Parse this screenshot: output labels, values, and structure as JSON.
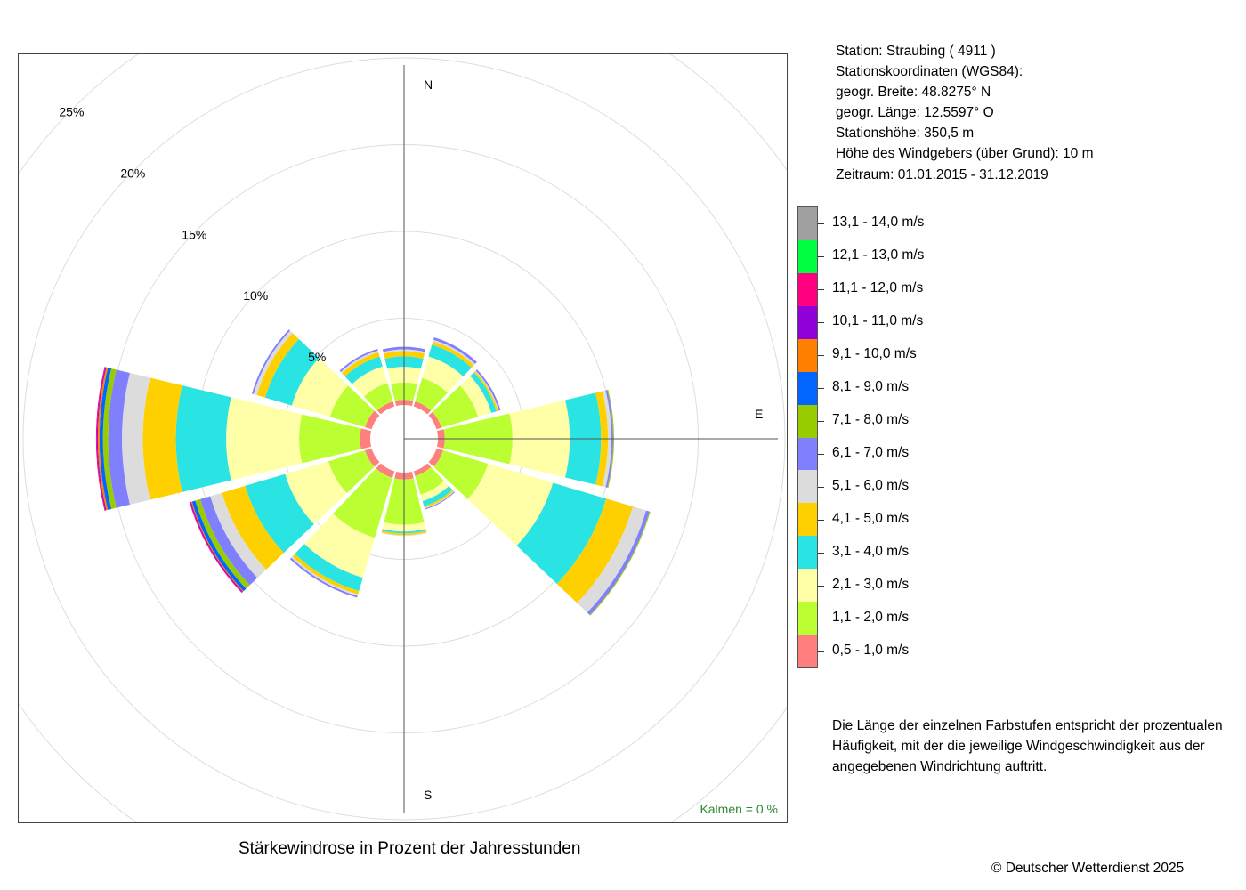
{
  "station": {
    "line_station": "Station:  Straubing  ( 4911 )",
    "line_coords": "Stationskoordinaten (WGS84):",
    "line_lat": "geogr. Breite: 48.8275° N",
    "line_lon": "geogr. Länge: 12.5597° O",
    "line_height": "Stationshöhe: 350,5 m",
    "line_sensor": "Höhe des Windgebers (über Grund): 10 m",
    "line_period": "Zeitraum: 01.01.2015 - 31.12.2019"
  },
  "note": "Die Länge der einzelnen Farbstufen entspricht der prozentualen Häufigkeit, mit der die jeweilige Windgeschwindigkeit aus der angegebenen Windrichtung auftritt.",
  "caption": "Stärkewindrose in Prozent der Jahresstunden",
  "copyright": "© Deutscher Wetterdienst  2025",
  "chart_data": {
    "type": "windrose",
    "title": "Stärkewindrose in Prozent der Jahresstunden",
    "direction_labels": {
      "north": "N",
      "east": "E",
      "south": "S"
    },
    "ring_labels": [
      "5%",
      "10%",
      "15%",
      "20%",
      "25%"
    ],
    "rings": [
      5,
      10,
      15,
      20,
      25
    ],
    "calm_label": "Kalmen  =  0 %",
    "calm": 0,
    "legend": [
      {
        "label": "13,1 - 14,0 m/s",
        "color": "#a0a0a0"
      },
      {
        "label": "12,1 - 13,0 m/s",
        "color": "#00ff40"
      },
      {
        "label": "11,1 - 12,0 m/s",
        "color": "#ff0080"
      },
      {
        "label": "10,1 - 11,0 m/s",
        "color": "#9000d8"
      },
      {
        "label": "9,1 - 10,0 m/s",
        "color": "#ff8000"
      },
      {
        "label": "8,1 - 9,0 m/s",
        "color": "#0066ff"
      },
      {
        "label": "7,1 - 8,0 m/s",
        "color": "#99cc00"
      },
      {
        "label": "6,1 - 7,0 m/s",
        "color": "#8080ff"
      },
      {
        "label": "5,1 - 6,0 m/s",
        "color": "#dcdcdc"
      },
      {
        "label": "4,1 - 5,0 m/s",
        "color": "#ffd000"
      },
      {
        "label": "3,1 - 4,0 m/s",
        "color": "#2ae4e4"
      },
      {
        "label": "2,1 - 3,0 m/s",
        "color": "#ffffa8"
      },
      {
        "label": "1,1 - 2,0 m/s",
        "color": "#bbff33"
      },
      {
        "label": "0,5 - 1,0 m/s",
        "color": "#ff7f7f"
      }
    ],
    "classes": [
      "0,5 - 1,0 m/s",
      "1,1 - 2,0 m/s",
      "2,1 - 3,0 m/s",
      "3,1 - 4,0 m/s",
      "4,1 - 5,0 m/s",
      "5,1 - 6,0 m/s",
      "6,1 - 7,0 m/s",
      "7,1 - 8,0 m/s",
      "8,1 - 9,0 m/s",
      "9,1 - 10,0 m/s",
      "10,1 - 11,0 m/s",
      "11,1 - 12,0 m/s",
      "12,1 - 13,0 m/s",
      "13,1 - 14,0 m/s"
    ],
    "sectors": [
      {
        "direction_deg": 0,
        "values": [
          0.3,
          1.0,
          0.9,
          0.6,
          0.3,
          0.1,
          0.15,
          0,
          0,
          0,
          0,
          0,
          0,
          0
        ]
      },
      {
        "direction_deg": 30,
        "values": [
          0.3,
          1.4,
          1.3,
          0.7,
          0.2,
          0.1,
          0.15,
          0,
          0,
          0,
          0,
          0,
          0,
          0
        ]
      },
      {
        "direction_deg": 60,
        "values": [
          0.3,
          2.2,
          0.8,
          0.3,
          0.1,
          0.05,
          0.1,
          0,
          0,
          0,
          0,
          0,
          0,
          0
        ]
      },
      {
        "direction_deg": 90,
        "values": [
          0.4,
          3.9,
          3.3,
          1.8,
          0.4,
          0.2,
          0.1,
          0.05,
          0,
          0,
          0,
          0,
          0,
          0
        ]
      },
      {
        "direction_deg": 120,
        "values": [
          0.4,
          2.7,
          3.9,
          3.2,
          1.6,
          0.8,
          0.2,
          0.05,
          0,
          0,
          0,
          0,
          0,
          0
        ]
      },
      {
        "direction_deg": 150,
        "values": [
          0.3,
          1.1,
          0.4,
          0.3,
          0.1,
          0.05,
          0.05,
          0,
          0,
          0,
          0,
          0,
          0,
          0
        ]
      },
      {
        "direction_deg": 180,
        "values": [
          0.4,
          2.6,
          0.4,
          0.1,
          0.1,
          0.05,
          0,
          0,
          0,
          0,
          0,
          0,
          0,
          0
        ]
      },
      {
        "direction_deg": 210,
        "values": [
          0.4,
          3.6,
          2.4,
          0.8,
          0.2,
          0.1,
          0.1,
          0,
          0,
          0,
          0,
          0,
          0,
          0
        ]
      },
      {
        "direction_deg": 240,
        "values": [
          0.4,
          2.2,
          2.6,
          2.4,
          1.4,
          0.7,
          0.6,
          0.3,
          0.2,
          0.05,
          0.05,
          0.05,
          0,
          0
        ]
      },
      {
        "direction_deg": 270,
        "values": [
          0.6,
          3.5,
          4.2,
          2.9,
          1.9,
          1.2,
          0.8,
          0.3,
          0.2,
          0.1,
          0.05,
          0.05,
          0,
          0
        ]
      },
      {
        "direction_deg": 300,
        "values": [
          0.4,
          2.1,
          2.3,
          1.6,
          0.5,
          0.2,
          0.1,
          0,
          0,
          0,
          0,
          0,
          0,
          0
        ]
      },
      {
        "direction_deg": 330,
        "values": [
          0.3,
          1.1,
          1.0,
          0.6,
          0.25,
          0.1,
          0.1,
          0,
          0,
          0,
          0,
          0,
          0,
          0
        ]
      }
    ]
  }
}
